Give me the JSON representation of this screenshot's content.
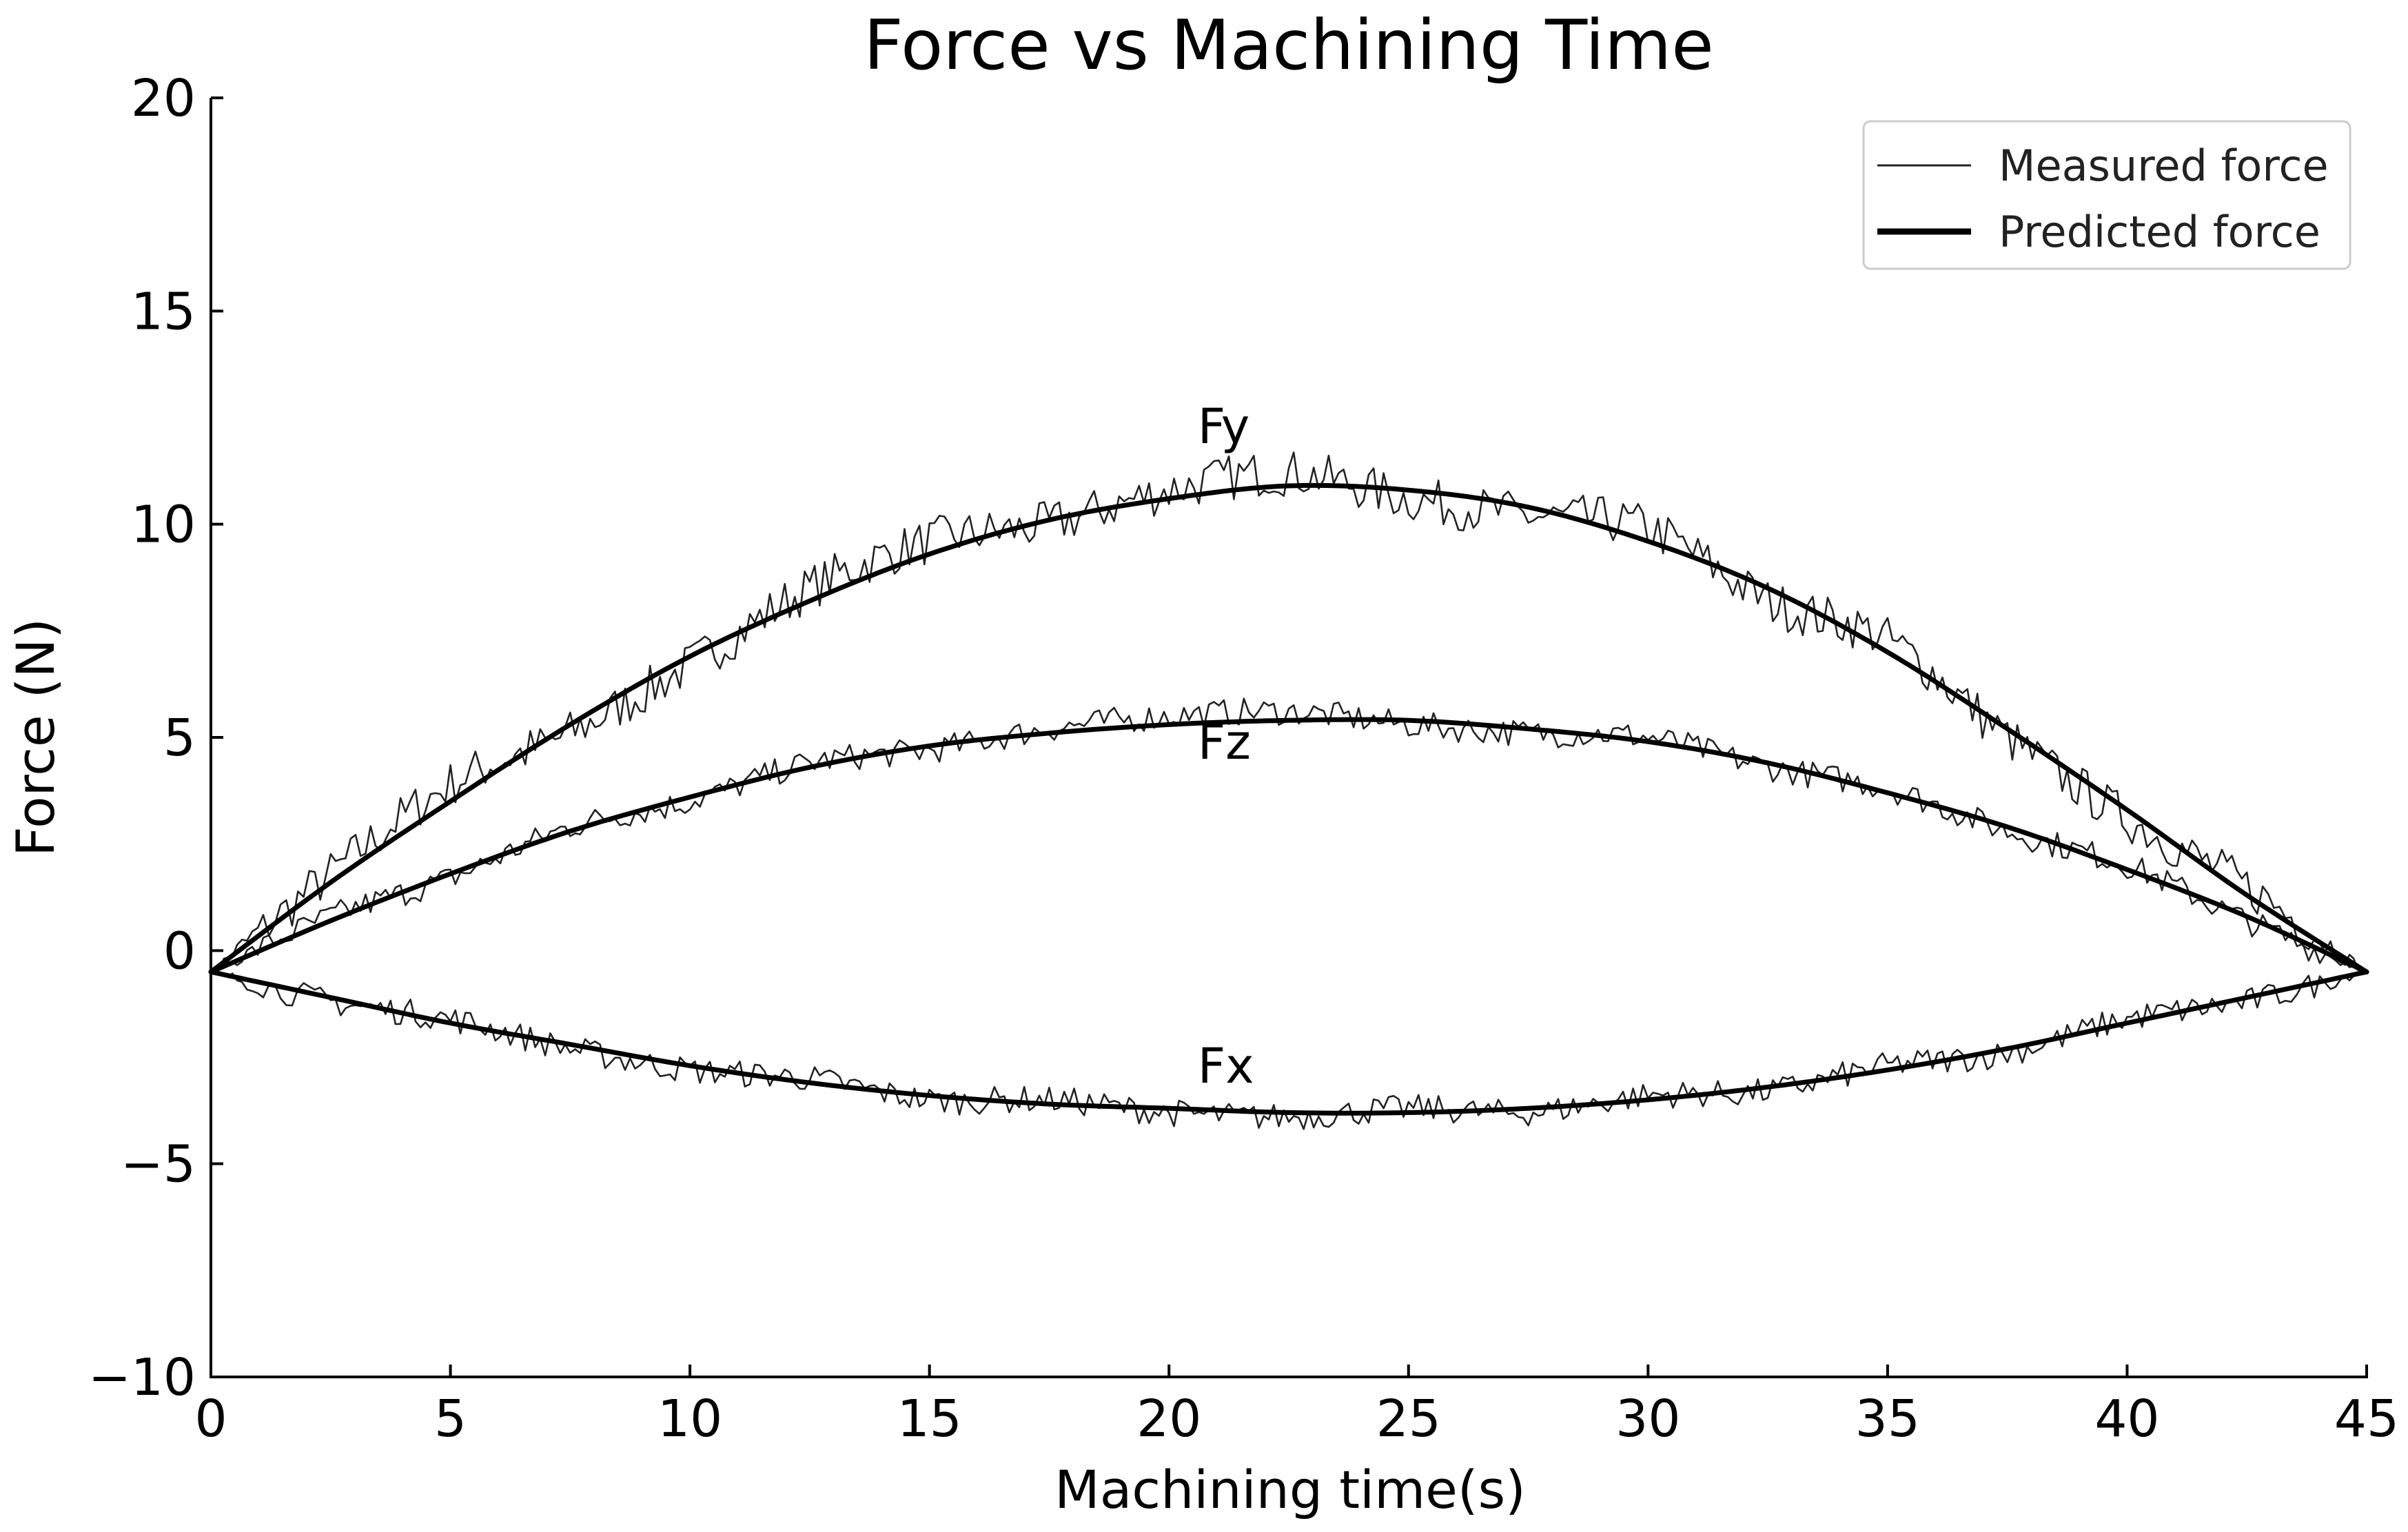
{
  "chart_data": {
    "type": "line",
    "title": "Force vs Machining Time",
    "xlabel": "Machining time(s)",
    "ylabel": "Force (N)",
    "xlim": [
      0,
      45
    ],
    "ylim": [
      -10,
      20
    ],
    "xticks": [
      "0",
      "5",
      "10",
      "15",
      "20",
      "25",
      "30",
      "35",
      "40",
      "45"
    ],
    "yticks": [
      "−10",
      "−5",
      "0",
      "5",
      "10",
      "15",
      "20"
    ],
    "grid": false,
    "legend_position": "top-right",
    "legend": [
      {
        "label": "Measured force",
        "style": "thin"
      },
      {
        "label": "Predicted force",
        "style": "thick"
      }
    ],
    "curve_labels": [
      {
        "text": "Fy",
        "x": 20.6,
        "y": 11.9
      },
      {
        "text": "Fz",
        "x": 20.6,
        "y": 4.5
      },
      {
        "text": "Fx",
        "x": 20.6,
        "y": -3.1
      }
    ],
    "series": [
      {
        "name": "Fy",
        "x": [
          0,
          2.5,
          5,
          7.5,
          10,
          12.5,
          15,
          17.5,
          20,
          22.5,
          25,
          27.5,
          30,
          32.5,
          35,
          37.5,
          40,
          42.5,
          45
        ],
        "predicted": [
          -0.5,
          1.6,
          3.5,
          5.3,
          6.9,
          8.2,
          9.3,
          10.1,
          10.6,
          10.9,
          10.8,
          10.4,
          9.6,
          8.5,
          7.0,
          5.2,
          3.3,
          1.3,
          -0.5
        ],
        "measured": [
          -0.5,
          1.8,
          3.9,
          5.1,
          6.7,
          8.5,
          9.6,
          10.0,
          10.8,
          11.2,
          10.6,
          10.2,
          9.9,
          8.2,
          7.3,
          5.0,
          3.1,
          1.5,
          -0.5
        ]
      },
      {
        "name": "Fz",
        "x": [
          0,
          2.5,
          5,
          7.5,
          10,
          12.5,
          15,
          17.5,
          20,
          22.5,
          25,
          27.5,
          30,
          32.5,
          35,
          37.5,
          40,
          42.5,
          45
        ],
        "predicted": [
          -0.5,
          0.7,
          1.8,
          2.8,
          3.6,
          4.3,
          4.8,
          5.1,
          5.3,
          5.4,
          5.4,
          5.2,
          4.9,
          4.4,
          3.7,
          2.9,
          1.9,
          0.8,
          -0.5
        ],
        "measured": [
          -0.5,
          0.8,
          1.7,
          2.9,
          3.5,
          4.4,
          4.7,
          5.2,
          5.5,
          5.6,
          5.3,
          5.1,
          5.0,
          4.3,
          3.8,
          2.8,
          2.0,
          0.7,
          -0.5
        ]
      },
      {
        "name": "Fx",
        "x": [
          0,
          2.5,
          5,
          7.5,
          10,
          12.5,
          15,
          17.5,
          20,
          22.5,
          25,
          27.5,
          30,
          32.5,
          35,
          37.5,
          40,
          42.5,
          45
        ],
        "predicted": [
          -0.5,
          -1.1,
          -1.7,
          -2.2,
          -2.7,
          -3.1,
          -3.4,
          -3.6,
          -3.7,
          -3.8,
          -3.8,
          -3.7,
          -3.5,
          -3.2,
          -2.8,
          -2.3,
          -1.7,
          -1.1,
          -0.5
        ],
        "measured": [
          -0.5,
          -1.2,
          -1.6,
          -2.3,
          -2.8,
          -3.0,
          -3.5,
          -3.5,
          -3.8,
          -3.9,
          -3.7,
          -3.8,
          -3.4,
          -3.3,
          -2.7,
          -2.4,
          -1.6,
          -1.2,
          -0.5
        ]
      }
    ]
  }
}
